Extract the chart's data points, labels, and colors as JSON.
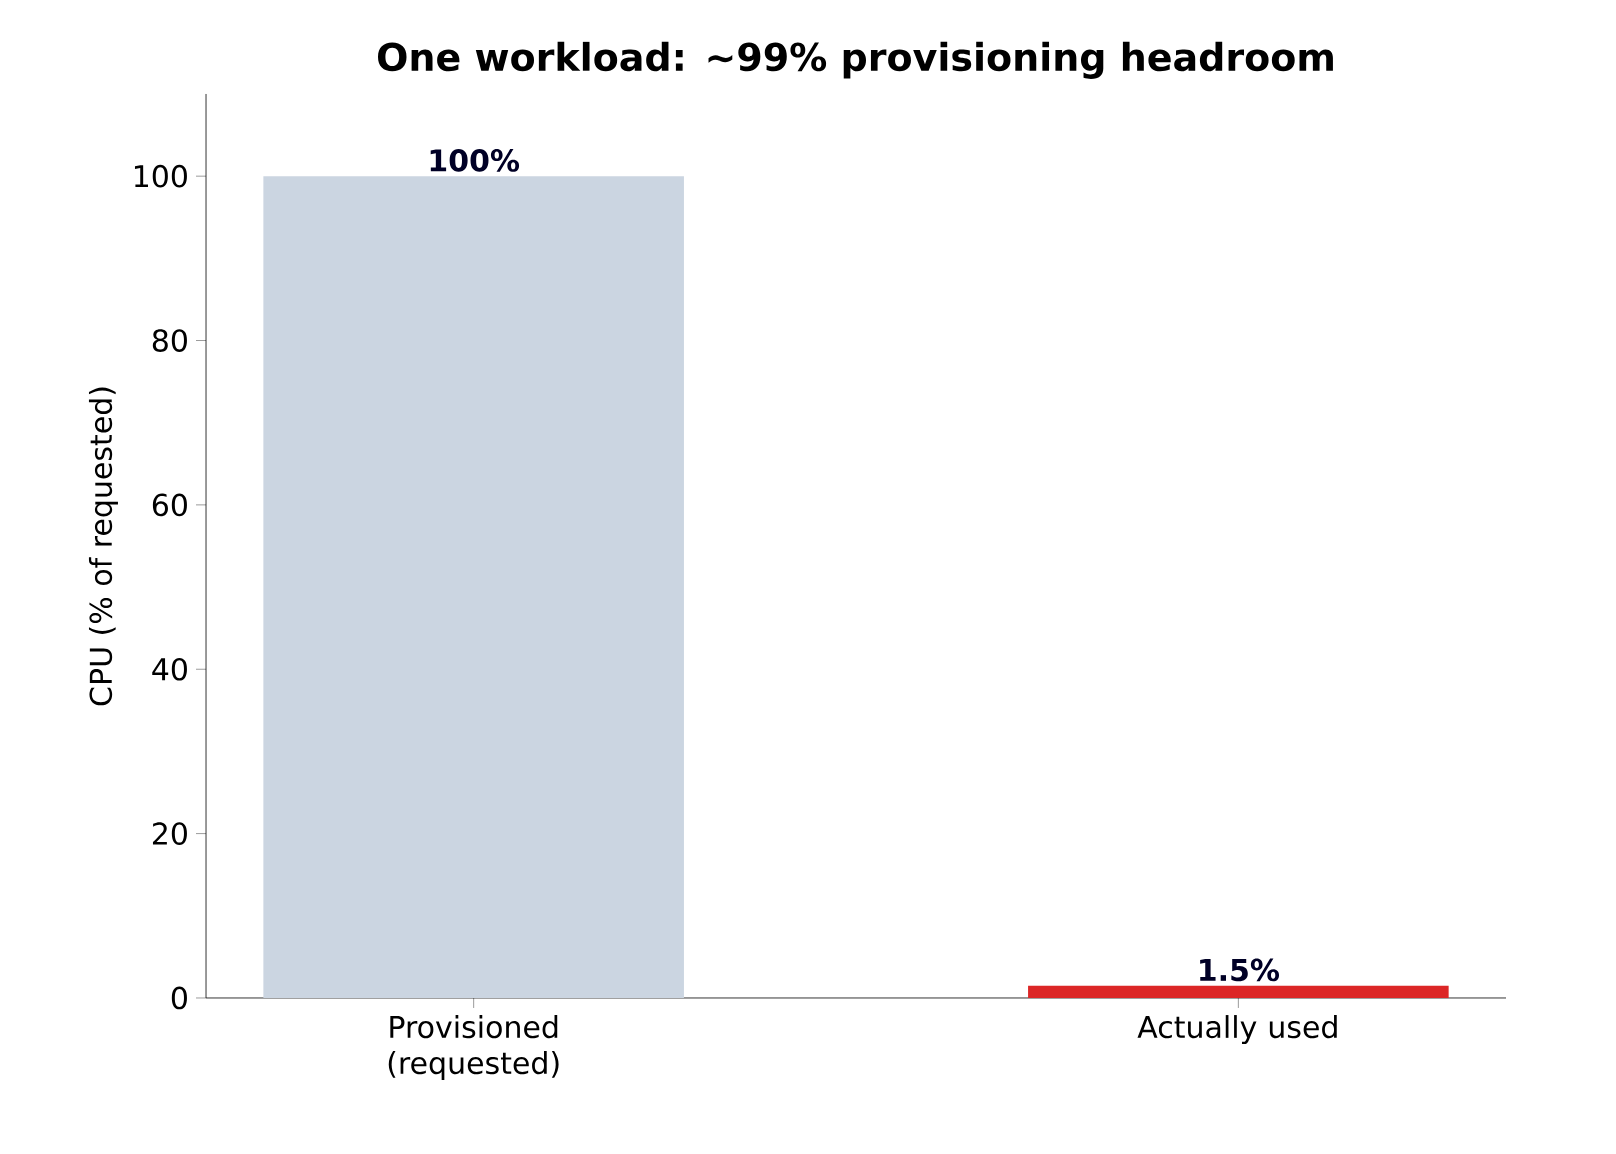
{
  "chart_data": {
    "type": "bar",
    "title": "One workload: ~99% provisioning headroom",
    "ylabel": "CPU (% of requested)",
    "categories": [
      "Provisioned (requested)",
      "Actually used"
    ],
    "values": [
      100,
      1.5
    ],
    "colors": [
      "#cbd5e1",
      "#dc2626"
    ],
    "value_labels": [
      "100%",
      "1.5%"
    ],
    "ylim": [
      0,
      110
    ],
    "yticks": [
      0,
      20,
      40,
      60,
      80,
      100
    ],
    "grid": false
  }
}
